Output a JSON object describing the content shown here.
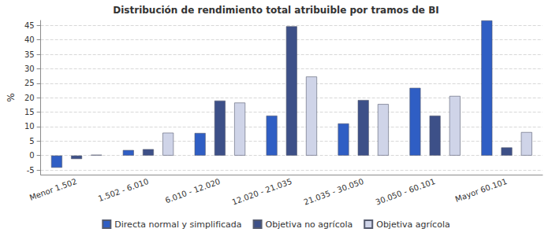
{
  "chart_data": {
    "type": "bar",
    "title": "Distribución de rendimiento total atribuible por tramos de BI",
    "y_label": "%",
    "categories": [
      "Menor 1.502",
      "1.502 - 6.010",
      "6.010 - 12.020",
      "12.020 - 21.035",
      "21.035 - 30.050",
      "30.050 - 60.101",
      "Mayor 60.101"
    ],
    "series": [
      {
        "name": "Directa normal y simplificada",
        "color": "#2f5ec4",
        "values": [
          -4.2,
          1.9,
          7.8,
          13.8,
          11.1,
          23.4,
          46.7
        ]
      },
      {
        "name": "Objetiva no agrícola",
        "color": "#3d5088",
        "values": [
          -1.2,
          2.2,
          19.0,
          44.7,
          19.2,
          13.8,
          2.8
        ]
      },
      {
        "name": "Objetiva agrícola",
        "color": "#cfd4e8",
        "values": [
          0.3,
          7.9,
          18.3,
          27.3,
          17.8,
          20.6,
          8.1
        ]
      }
    ],
    "ylim": [
      -6.6,
      46.7
    ],
    "yticks": [
      -5,
      0,
      5,
      10,
      15,
      20,
      25,
      30,
      35,
      40,
      45
    ],
    "grid": true,
    "legend": "bottom"
  }
}
